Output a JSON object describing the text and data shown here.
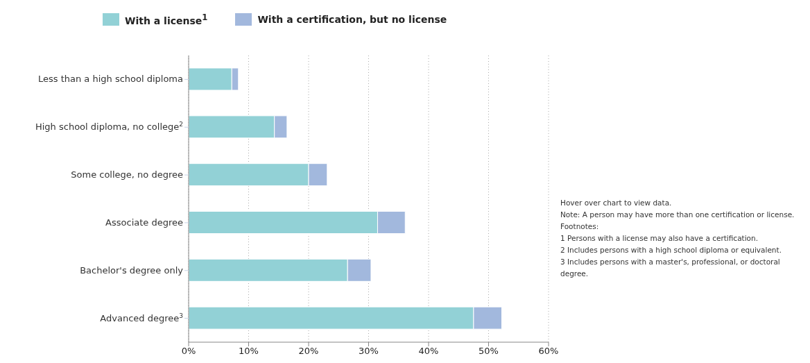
{
  "chart_data": {
    "type": "bar",
    "orientation": "horizontal",
    "stacked": true,
    "categories": [
      "Less than a high school diploma",
      "High school diploma, no college$^{2}$",
      "Some college, no degree",
      "Associate degree",
      "Bachelor's degree only",
      "Advanced degree$^{3}$"
    ],
    "series": [
      {
        "name": "With a license$^{1}$",
        "color": "#92d1d6",
        "values": [
          7.2,
          14.3,
          20.0,
          31.5,
          26.5,
          47.5
        ]
      },
      {
        "name": "With a certification, but no license",
        "color": "#a2b8dd",
        "values": [
          1.1,
          2.1,
          3.1,
          4.6,
          3.9,
          4.7
        ]
      }
    ],
    "xlim": [
      0,
      60
    ],
    "xticks": [
      {
        "value": 0,
        "label": "0%"
      },
      {
        "value": 10,
        "label": "10%"
      },
      {
        "value": 20,
        "label": "20%"
      },
      {
        "value": 30,
        "label": "30%"
      },
      {
        "value": 40,
        "label": "40%"
      },
      {
        "value": 50,
        "label": "50%"
      },
      {
        "value": 60,
        "label": "60%"
      }
    ],
    "grid": "x",
    "legend": "top left",
    "annotations": [
      "Hover over chart to view data.",
      "Note: A person may have more than one certification or license.",
      "Footnotes:",
      "1 Persons with a license may also have a certification.",
      "2 Includes persons with a high school diploma or equivalent.",
      "3 Includes persons with a master's, professional, or doctoral degree."
    ]
  }
}
